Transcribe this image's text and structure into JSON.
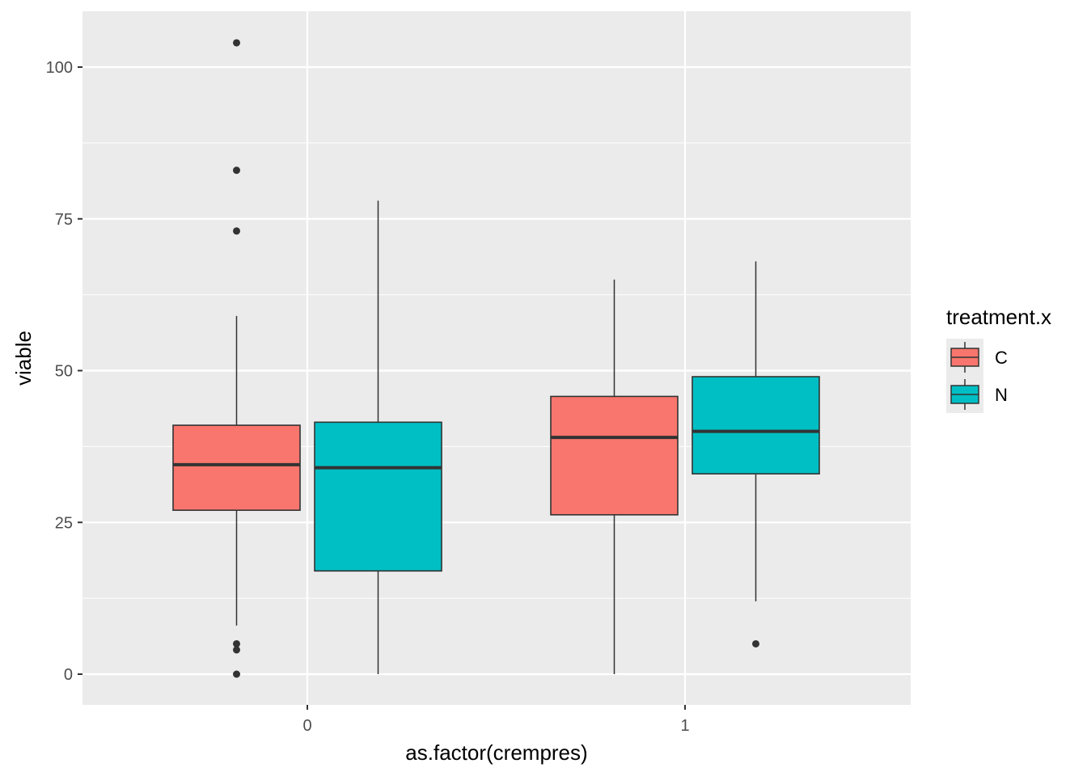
{
  "chart_data": {
    "type": "boxplot",
    "title": "",
    "xlabel": "as.factor(crempres)",
    "ylabel": "viable",
    "categories": [
      "0",
      "1"
    ],
    "ylim": [
      -5,
      109
    ],
    "yticks": [
      0,
      25,
      50,
      75,
      100
    ],
    "ytick_labels": [
      "0",
      "25",
      "50",
      "75",
      "100"
    ],
    "grid": true,
    "legend": {
      "title": "treatment.x",
      "position": "right",
      "entries": [
        "C",
        "N"
      ]
    },
    "series": [
      {
        "name": "C",
        "color": "#F8766D",
        "boxes": [
          {
            "category": "0",
            "lower_whisker": 8,
            "q1": 27,
            "median": 34.5,
            "q3": 41,
            "upper_whisker": 59,
            "outliers": [
              104,
              83,
              73,
              5,
              4,
              0
            ]
          },
          {
            "category": "1",
            "lower_whisker": 0,
            "q1": 26.25,
            "median": 39,
            "q3": 45.75,
            "upper_whisker": 65,
            "outliers": []
          }
        ]
      },
      {
        "name": "N",
        "color": "#00BFC4",
        "boxes": [
          {
            "category": "0",
            "lower_whisker": 0,
            "q1": 17,
            "median": 34,
            "q3": 41.5,
            "upper_whisker": 78,
            "outliers": []
          },
          {
            "category": "1",
            "lower_whisker": 12,
            "q1": 33,
            "median": 40,
            "q3": 49,
            "upper_whisker": 68,
            "outliers": [
              5
            ]
          }
        ]
      }
    ]
  }
}
